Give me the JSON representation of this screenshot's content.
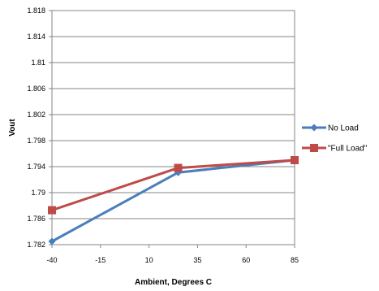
{
  "chart_data": {
    "type": "line",
    "title": "",
    "xlabel": "Ambient, Degrees C",
    "ylabel": "Vout",
    "x_ticks": [
      "-40",
      "-15",
      "10",
      "35",
      "60",
      "85"
    ],
    "y_ticks": [
      "1.782",
      "1.786",
      "1.79",
      "1.794",
      "1.798",
      "1.802",
      "1.806",
      "1.81",
      "1.814",
      "1.818"
    ],
    "xlim": [
      -40,
      85
    ],
    "ylim": [
      1.782,
      1.818
    ],
    "grid": "horizontal",
    "legend_position": "right",
    "series": [
      {
        "name": "No Load",
        "color": "#4a7ebb",
        "marker": "diamond",
        "x": [
          -40,
          25,
          85
        ],
        "y": [
          1.7825,
          1.7931,
          1.795
        ]
      },
      {
        "name": "\"Full Load\"",
        "color": "#be4b48",
        "marker": "square",
        "x": [
          -40,
          25,
          85
        ],
        "y": [
          1.7873,
          1.7938,
          1.795
        ]
      }
    ]
  }
}
